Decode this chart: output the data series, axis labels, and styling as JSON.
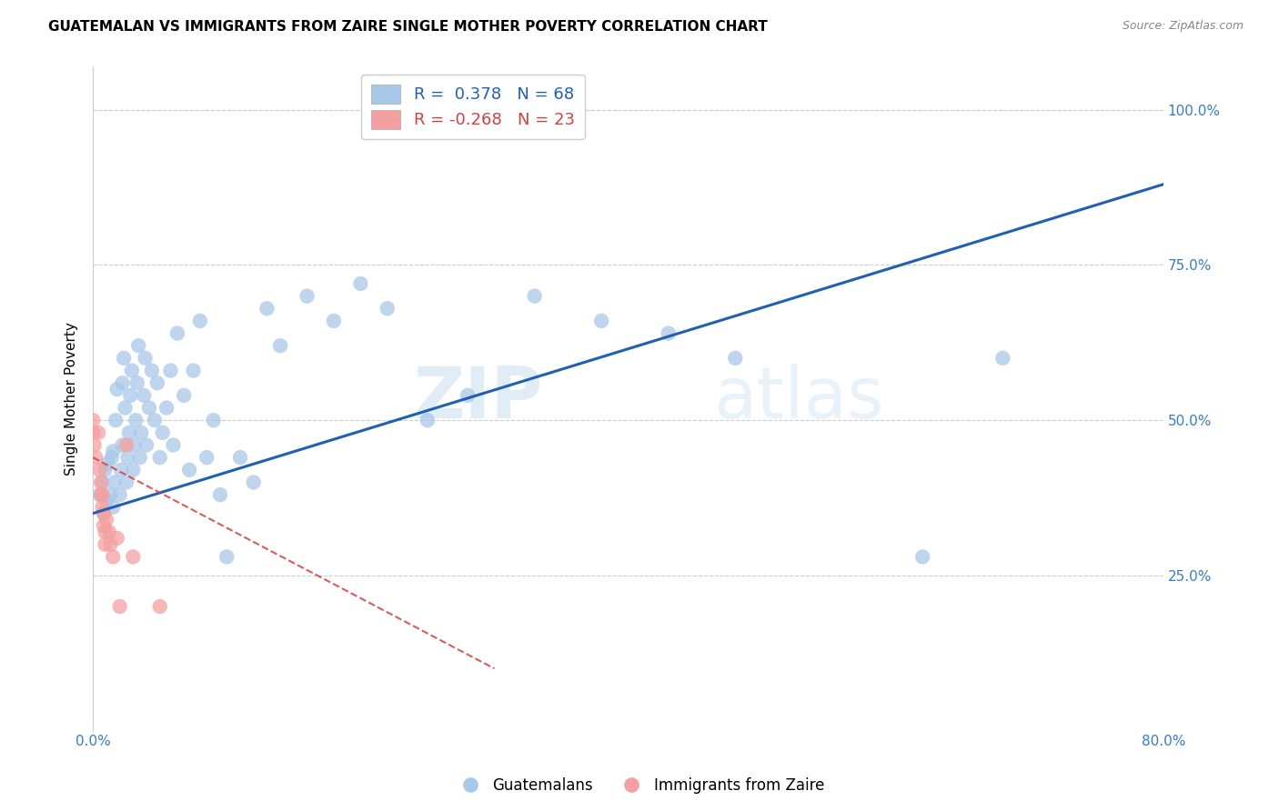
{
  "title": "GUATEMALAN VS IMMIGRANTS FROM ZAIRE SINGLE MOTHER POVERTY CORRELATION CHART",
  "source": "Source: ZipAtlas.com",
  "ylabel": "Single Mother Poverty",
  "xlim": [
    0.0,
    0.8
  ],
  "ylim": [
    0.0,
    1.07
  ],
  "xticks": [
    0.0,
    0.1,
    0.2,
    0.3,
    0.4,
    0.5,
    0.6,
    0.7,
    0.8
  ],
  "xtick_labels": [
    "0.0%",
    "",
    "",
    "",
    "",
    "",
    "",
    "",
    "80.0%"
  ],
  "ytick_positions": [
    0.25,
    0.5,
    0.75,
    1.0
  ],
  "ytick_labels": [
    "25.0%",
    "50.0%",
    "75.0%",
    "100.0%"
  ],
  "blue_color": "#a8c8e8",
  "pink_color": "#f4a0a0",
  "trendline_blue": "#2060b0",
  "trendline_pink": "#d04040",
  "R_blue": 0.378,
  "N_blue": 68,
  "R_pink": -0.268,
  "N_pink": 23,
  "legend_label_blue": "Guatemalans",
  "legend_label_pink": "Immigrants from Zaire",
  "watermark_zip": "ZIP",
  "watermark_atlas": "atlas",
  "blue_x": [
    0.005,
    0.007,
    0.008,
    0.009,
    0.01,
    0.011,
    0.013,
    0.014,
    0.015,
    0.015,
    0.016,
    0.017,
    0.018,
    0.02,
    0.021,
    0.022,
    0.022,
    0.023,
    0.024,
    0.025,
    0.026,
    0.027,
    0.028,
    0.029,
    0.03,
    0.031,
    0.032,
    0.033,
    0.034,
    0.035,
    0.036,
    0.038,
    0.039,
    0.04,
    0.042,
    0.044,
    0.046,
    0.048,
    0.05,
    0.052,
    0.055,
    0.058,
    0.06,
    0.063,
    0.068,
    0.072,
    0.075,
    0.08,
    0.085,
    0.09,
    0.095,
    0.1,
    0.11,
    0.12,
    0.13,
    0.14,
    0.16,
    0.18,
    0.2,
    0.22,
    0.25,
    0.28,
    0.33,
    0.38,
    0.43,
    0.48,
    0.62,
    0.68
  ],
  "blue_y": [
    0.38,
    0.4,
    0.35,
    0.42,
    0.37,
    0.43,
    0.38,
    0.44,
    0.36,
    0.45,
    0.4,
    0.5,
    0.55,
    0.38,
    0.42,
    0.46,
    0.56,
    0.6,
    0.52,
    0.4,
    0.44,
    0.48,
    0.54,
    0.58,
    0.42,
    0.46,
    0.5,
    0.56,
    0.62,
    0.44,
    0.48,
    0.54,
    0.6,
    0.46,
    0.52,
    0.58,
    0.5,
    0.56,
    0.44,
    0.48,
    0.52,
    0.58,
    0.46,
    0.64,
    0.54,
    0.42,
    0.58,
    0.66,
    0.44,
    0.5,
    0.38,
    0.28,
    0.44,
    0.4,
    0.68,
    0.62,
    0.7,
    0.66,
    0.72,
    0.68,
    0.5,
    0.54,
    0.7,
    0.66,
    0.64,
    0.6,
    0.28,
    0.6
  ],
  "pink_x": [
    0.0,
    0.0,
    0.001,
    0.002,
    0.004,
    0.005,
    0.006,
    0.006,
    0.007,
    0.007,
    0.008,
    0.008,
    0.009,
    0.009,
    0.01,
    0.012,
    0.013,
    0.015,
    0.018,
    0.02,
    0.025,
    0.03,
    0.05
  ],
  "pink_y": [
    0.5,
    0.48,
    0.46,
    0.44,
    0.48,
    0.42,
    0.4,
    0.38,
    0.36,
    0.38,
    0.35,
    0.33,
    0.32,
    0.3,
    0.34,
    0.32,
    0.3,
    0.28,
    0.31,
    0.2,
    0.46,
    0.28,
    0.2
  ],
  "blue_trendline_x": [
    0.0,
    0.8
  ],
  "blue_trendline_y": [
    0.35,
    0.88
  ],
  "pink_trendline_x": [
    0.0,
    0.3
  ],
  "pink_trendline_y": [
    0.44,
    0.1
  ]
}
